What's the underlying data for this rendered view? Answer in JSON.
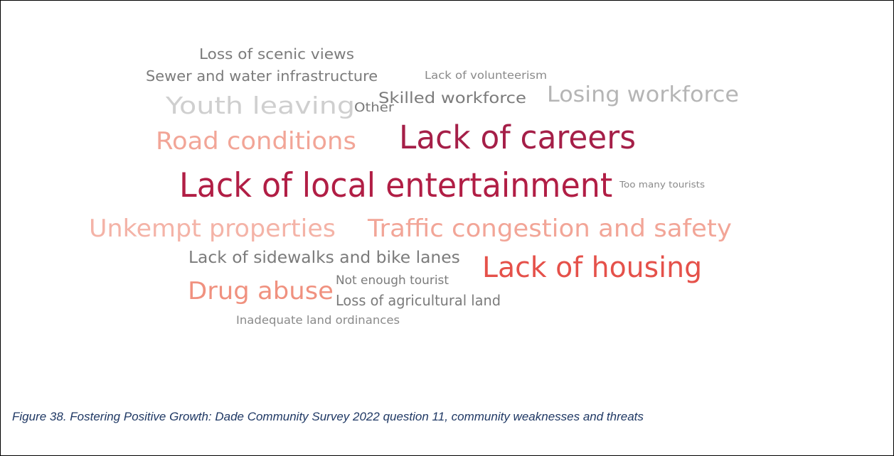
{
  "word_cloud": {
    "words": [
      {
        "text": "Loss of scenic views",
        "color": "#7b7b7b"
      },
      {
        "text": "Sewer and water infrastructure",
        "color": "#7b7b7b"
      },
      {
        "text": "Lack of volunteerism",
        "color": "#8a8a8a"
      },
      {
        "text": "Youth leaving",
        "color": "#cfcfcf"
      },
      {
        "text": "Other",
        "color": "#7b7b7b"
      },
      {
        "text": "Skilled workforce",
        "color": "#7b7b7b"
      },
      {
        "text": "Losing workforce",
        "color": "#b5b5b5"
      },
      {
        "text": "Road conditions",
        "color": "#f2a597"
      },
      {
        "text": "Lack of careers",
        "color": "#a51f48"
      },
      {
        "text": "Lack of local entertainment",
        "color": "#b11e45"
      },
      {
        "text": "Too many tourists",
        "color": "#8a8a8a"
      },
      {
        "text": "Unkempt properties",
        "color": "#f4b3a7"
      },
      {
        "text": "Traffic congestion and safety",
        "color": "#f2a597"
      },
      {
        "text": "Lack of sidewalks and bike lanes",
        "color": "#7b7b7b"
      },
      {
        "text": "Lack of housing",
        "color": "#e5514a"
      },
      {
        "text": "Not enough tourist",
        "color": "#7b7b7b"
      },
      {
        "text": "Drug abuse",
        "color": "#f0917f"
      },
      {
        "text": "Loss of agricultural land",
        "color": "#7b7b7b"
      },
      {
        "text": "Inadequate land ordinances",
        "color": "#8a8a8a"
      }
    ]
  },
  "caption": "Figure 38. Fostering Positive Growth: Dade Community Survey 2022 question 11, community weaknesses and threats"
}
